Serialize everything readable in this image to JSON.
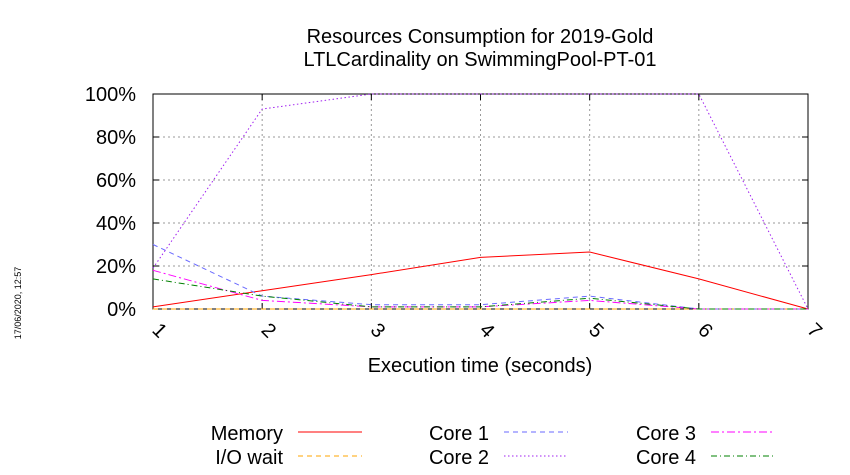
{
  "timestamp": "17/06/2020, 12:57",
  "chart_data": {
    "type": "line",
    "title": [
      "Resources Consumption for 2019-Gold",
      "LTLCardinality on SwimmingPool-PT-01"
    ],
    "xlabel": "Execution time (seconds)",
    "ylabel": "",
    "xlim": [
      1,
      7
    ],
    "ylim": [
      0,
      100
    ],
    "x": [
      1,
      2,
      3,
      4,
      5,
      6,
      7
    ],
    "y_ticks": [
      "0%",
      "20%",
      "40%",
      "60%",
      "80%",
      "100%"
    ],
    "x_ticks": [
      "1",
      "2",
      "3",
      "4",
      "5",
      "6",
      "7"
    ],
    "grid": true,
    "legend_position": "bottom",
    "series": [
      {
        "name": "Memory",
        "color": "#ff0000",
        "dash": "solid",
        "values": [
          1,
          8.5,
          16,
          24,
          26.5,
          14,
          0
        ]
      },
      {
        "name": "I/O wait",
        "color": "#ffa500",
        "dash": "dash",
        "values": [
          0,
          0,
          0,
          0,
          0,
          0,
          0
        ]
      },
      {
        "name": "Core 1",
        "color": "#6a6aff",
        "dash": "dash",
        "values": [
          30,
          6,
          2,
          2,
          6,
          0,
          0
        ]
      },
      {
        "name": "Core 2",
        "color": "#a020f0",
        "dash": "dot",
        "values": [
          19,
          93,
          100,
          100,
          100,
          100,
          0
        ]
      },
      {
        "name": "Core 3",
        "color": "#ff00ff",
        "dash": "dashdot",
        "values": [
          18,
          4,
          1,
          1,
          4,
          0,
          0
        ]
      },
      {
        "name": "Core 4",
        "color": "#008000",
        "dash": "dashdot2",
        "values": [
          14,
          6,
          1,
          1,
          5,
          0,
          0
        ]
      }
    ]
  }
}
